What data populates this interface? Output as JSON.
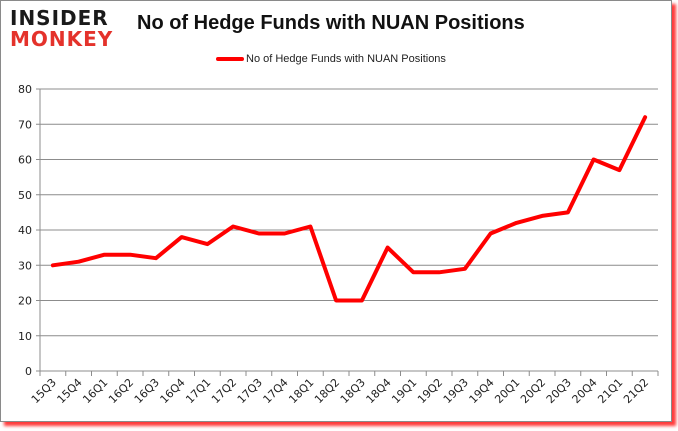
{
  "logo": {
    "line1": "INSIDER",
    "line2": "MONKEY"
  },
  "header": {
    "title": "No of Hedge Funds with NUAN Positions"
  },
  "legend": {
    "label": "No of Hedge Funds with NUAN Positions",
    "color": "#ff0000"
  },
  "colors": {
    "line": "#ff0000",
    "grid": "#8c8c8c",
    "frame_shadow": "#ff3b3b",
    "logo_red": "#e4322b"
  },
  "chart_data": {
    "type": "line",
    "title": "No of Hedge Funds with NUAN Positions",
    "xlabel": "",
    "ylabel": "",
    "ylim": [
      0,
      80
    ],
    "yticks": [
      0,
      10,
      20,
      30,
      40,
      50,
      60,
      70,
      80
    ],
    "grid": true,
    "legend_position": "top",
    "categories": [
      "15Q3",
      "15Q4",
      "16Q1",
      "16Q2",
      "16Q3",
      "16Q4",
      "17Q1",
      "17Q2",
      "17Q3",
      "17Q4",
      "18Q1",
      "18Q2",
      "18Q3",
      "18Q4",
      "19Q1",
      "19Q2",
      "19Q3",
      "19Q4",
      "20Q1",
      "20Q2",
      "20Q3",
      "20Q4",
      "21Q1",
      "21Q2"
    ],
    "series": [
      {
        "name": "No of Hedge Funds with NUAN Positions",
        "values": [
          30,
          31,
          33,
          33,
          32,
          38,
          36,
          41,
          39,
          39,
          41,
          20,
          20,
          35,
          28,
          28,
          29,
          39,
          42,
          44,
          45,
          60,
          57,
          72
        ]
      }
    ]
  }
}
